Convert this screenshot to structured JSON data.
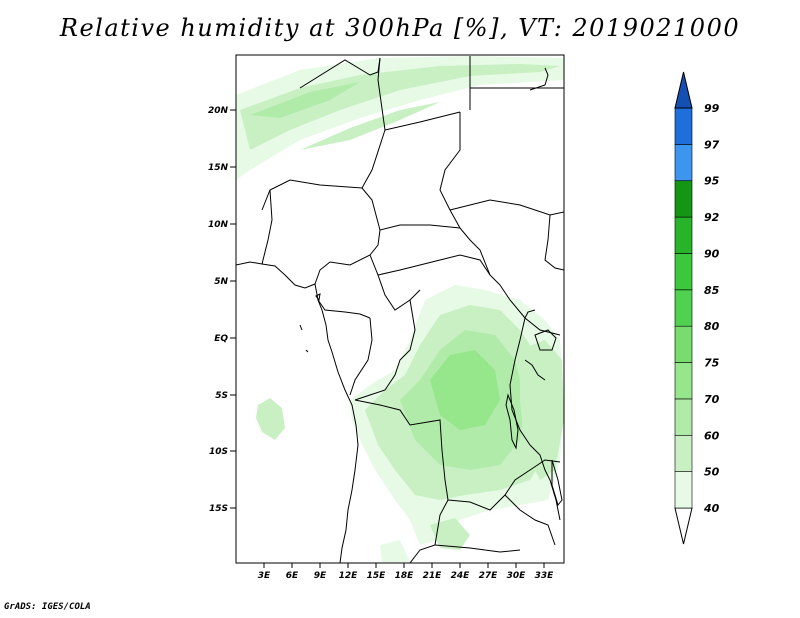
{
  "title": "Relative humidity at 300hPa [%], VT: 2019021000",
  "credit": "GrADS: IGES/COLA",
  "map": {
    "variable": "Relative humidity",
    "level": "300hPa",
    "units": "%",
    "valid_time": "2019021000",
    "lat_labels": [
      "20N",
      "15N",
      "10N",
      "5N",
      "EQ",
      "5S",
      "10S",
      "15S"
    ],
    "lon_labels": [
      "3E",
      "6E",
      "9E",
      "12E",
      "15E",
      "18E",
      "21E",
      "24E",
      "27E",
      "30E",
      "33E"
    ]
  },
  "colorbar": {
    "levels": [
      "40",
      "50",
      "60",
      "70",
      "75",
      "80",
      "85",
      "90",
      "92",
      "95",
      "97",
      "99"
    ],
    "colors": [
      "#e6fae6",
      "#c8f0c3",
      "#b0ebaa",
      "#96e68c",
      "#78dc6e",
      "#50d250",
      "#3cc83c",
      "#28b428",
      "#149614",
      "#3c96f0",
      "#1e6edc",
      "#1450b4"
    ],
    "below_color": "#ffffff"
  }
}
